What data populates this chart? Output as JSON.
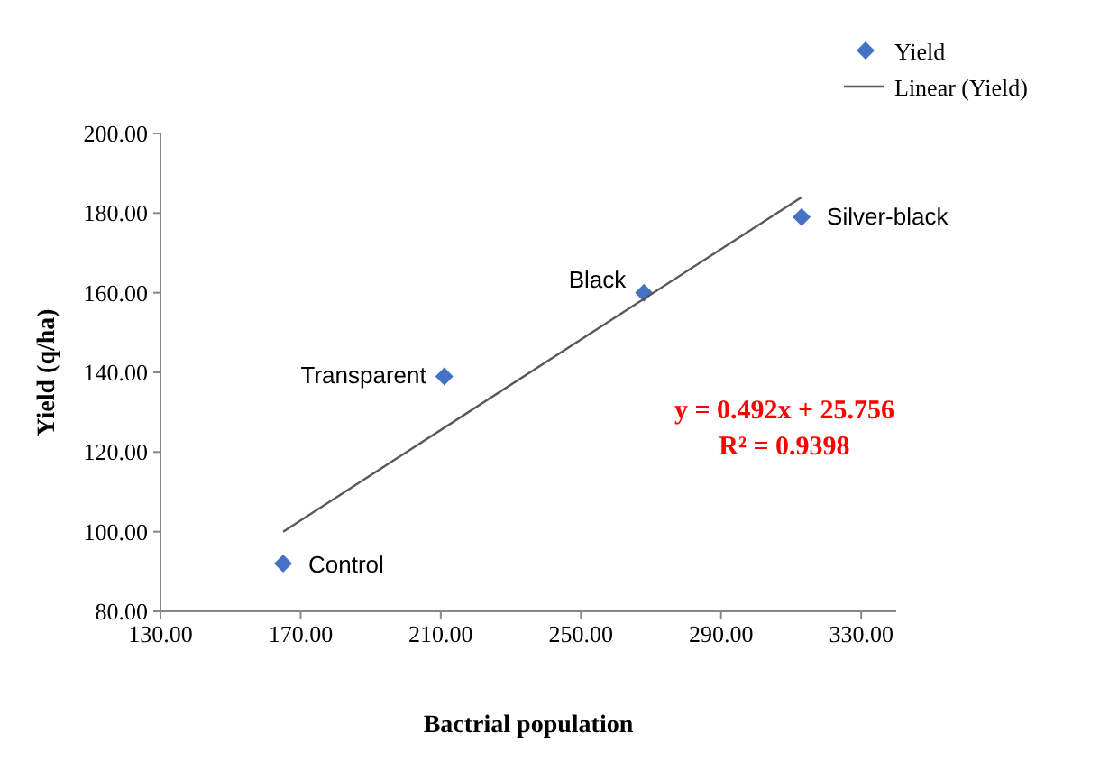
{
  "chart_data": {
    "type": "scatter",
    "xlabel": "Bactrial population",
    "ylabel": "Yield (q/ha)",
    "xlim": [
      130,
      340
    ],
    "xticks": [
      {
        "value": 130,
        "label": "130.00"
      },
      {
        "value": 170,
        "label": "170.00"
      },
      {
        "value": 210,
        "label": "210.00"
      },
      {
        "value": 250,
        "label": "250.00"
      },
      {
        "value": 290,
        "label": "290.00"
      },
      {
        "value": 330,
        "label": "330.00"
      }
    ],
    "ylim": [
      80,
      200
    ],
    "yticks": [
      {
        "value": 80,
        "label": "80.00"
      },
      {
        "value": 100,
        "label": "100.00"
      },
      {
        "value": 120,
        "label": "120.00"
      },
      {
        "value": 140,
        "label": "140.00"
      },
      {
        "value": 160,
        "label": "160.00"
      },
      {
        "value": 180,
        "label": "180.00"
      },
      {
        "value": 200,
        "label": "200.00"
      }
    ],
    "series": [
      {
        "name": "Yield",
        "color": "#4472c4",
        "marker": "diamond",
        "x": [
          165,
          211,
          268,
          313
        ],
        "values": [
          92,
          139,
          160,
          179
        ]
      },
      {
        "name": "Linear (Yield)",
        "type": "line",
        "color": "#595959",
        "marker": "none",
        "line_style": "solid",
        "x": [
          165,
          313
        ],
        "values": [
          100,
          184
        ]
      }
    ],
    "annotations": [
      {
        "text": "Control",
        "x": 165,
        "y": 92
      },
      {
        "text": "Transparent",
        "x": 211,
        "y": 139
      },
      {
        "text": "Black",
        "x": 268,
        "y": 160
      },
      {
        "text": "Silver-black",
        "x": 313,
        "y": 179
      },
      "y = 0.492x + 25.756",
      "R² = 0.9398"
    ],
    "legend": "top right",
    "grid": false
  }
}
